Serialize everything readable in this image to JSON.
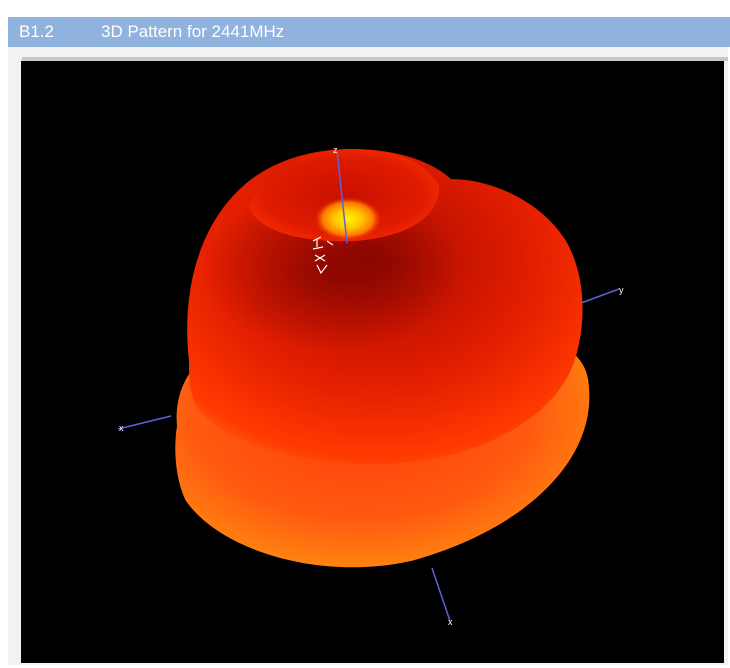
{
  "section": {
    "number": "B1.2",
    "title": "3D Pattern for 2441MHz"
  },
  "viewer": {
    "background": "#000000",
    "axis_color": "#5a63d6",
    "axis_labels": {
      "top": "z",
      "right": "y",
      "left": "x",
      "bottom": "x"
    },
    "colors": {
      "low": "#8b0000",
      "mid": "#e51a00",
      "high": "#ff9a00",
      "peak": "#ffe600"
    }
  }
}
